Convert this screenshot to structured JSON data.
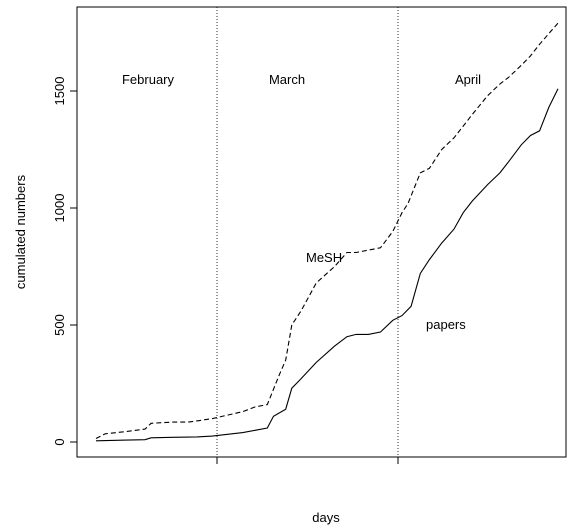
{
  "chart_data": {
    "type": "line",
    "title": "",
    "xlabel": "days",
    "ylabel": "cumulated numbers",
    "ylim": [
      0,
      1800
    ],
    "yticks": [
      0,
      500,
      1000,
      1500
    ],
    "grid": false,
    "legend": "none",
    "month_labels": [
      "February",
      "March",
      "April"
    ],
    "series": [
      {
        "name": "MeSH",
        "dash": "dashed",
        "label_text": "MeSH",
        "x": [
          0,
          3,
          10,
          16,
          18,
          25,
          30,
          33,
          38,
          48,
          52,
          56,
          60,
          62,
          64,
          67,
          72,
          78,
          82,
          85,
          89,
          93,
          97,
          100,
          102,
          106,
          109,
          113,
          117,
          120,
          123,
          128,
          132,
          135,
          139,
          142,
          145,
          151
        ],
        "values": [
          15,
          35,
          45,
          55,
          80,
          85,
          85,
          90,
          100,
          130,
          150,
          160,
          290,
          350,
          500,
          560,
          680,
          750,
          810,
          810,
          820,
          830,
          900,
          980,
          1020,
          1150,
          1170,
          1250,
          1300,
          1350,
          1400,
          1480,
          1530,
          1560,
          1610,
          1650,
          1700,
          1790
        ]
      },
      {
        "name": "papers",
        "dash": "solid",
        "label_text": "papers",
        "x": [
          0,
          10,
          16,
          18,
          25,
          33,
          38,
          48,
          52,
          56,
          58,
          62,
          64,
          67,
          72,
          78,
          82,
          85,
          89,
          93,
          97,
          100,
          103,
          106,
          109,
          113,
          117,
          120,
          123,
          128,
          132,
          135,
          139,
          142,
          145,
          148,
          151
        ],
        "values": [
          5,
          8,
          10,
          18,
          20,
          22,
          25,
          40,
          50,
          60,
          110,
          140,
          230,
          270,
          340,
          410,
          450,
          460,
          460,
          470,
          520,
          540,
          580,
          720,
          780,
          850,
          910,
          980,
          1030,
          1100,
          1150,
          1200,
          1270,
          1310,
          1330,
          1430,
          1510
        ]
      }
    ]
  }
}
